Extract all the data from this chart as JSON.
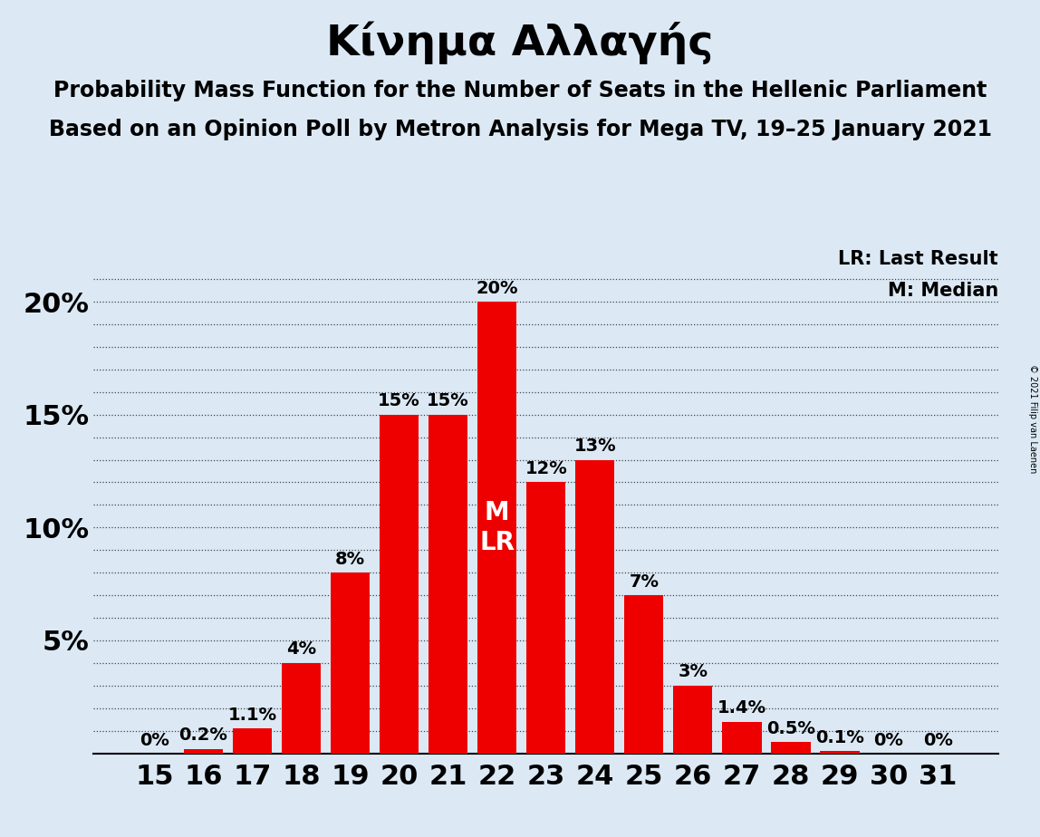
{
  "title": "Κίνημα Αλλαγής",
  "subtitle1": "Probability Mass Function for the Number of Seats in the Hellenic Parliament",
  "subtitle2": "Based on an Opinion Poll by Metron Analysis for Mega TV, 19–25 January 2021",
  "copyright": "© 2021 Filip van Laenen",
  "legend_lr": "LR: Last Result",
  "legend_m": "M: Median",
  "categories": [
    15,
    16,
    17,
    18,
    19,
    20,
    21,
    22,
    23,
    24,
    25,
    26,
    27,
    28,
    29,
    30,
    31
  ],
  "values": [
    0.0,
    0.2,
    1.1,
    4.0,
    8.0,
    15.0,
    15.0,
    20.0,
    12.0,
    13.0,
    7.0,
    3.0,
    1.4,
    0.5,
    0.1,
    0.0,
    0.0
  ],
  "labels": [
    "0%",
    "0.2%",
    "1.1%",
    "4%",
    "8%",
    "15%",
    "15%",
    "20%",
    "12%",
    "13%",
    "7%",
    "3%",
    "1.4%",
    "0.5%",
    "0.1%",
    "0%",
    "0%"
  ],
  "bar_color": "#ee0000",
  "background_color": "#dce9f5",
  "median_seat": 22,
  "lr_seat": 22,
  "ylim": [
    0,
    21.5
  ],
  "yticks": [
    0,
    5,
    10,
    15,
    20
  ],
  "ytick_labels": [
    "",
    "5%",
    "10%",
    "15%",
    "20%"
  ],
  "title_fontsize": 34,
  "subtitle_fontsize": 17,
  "axis_fontsize": 22,
  "bar_label_fontsize": 14,
  "annot_fontsize": 20,
  "legend_fontsize": 15
}
